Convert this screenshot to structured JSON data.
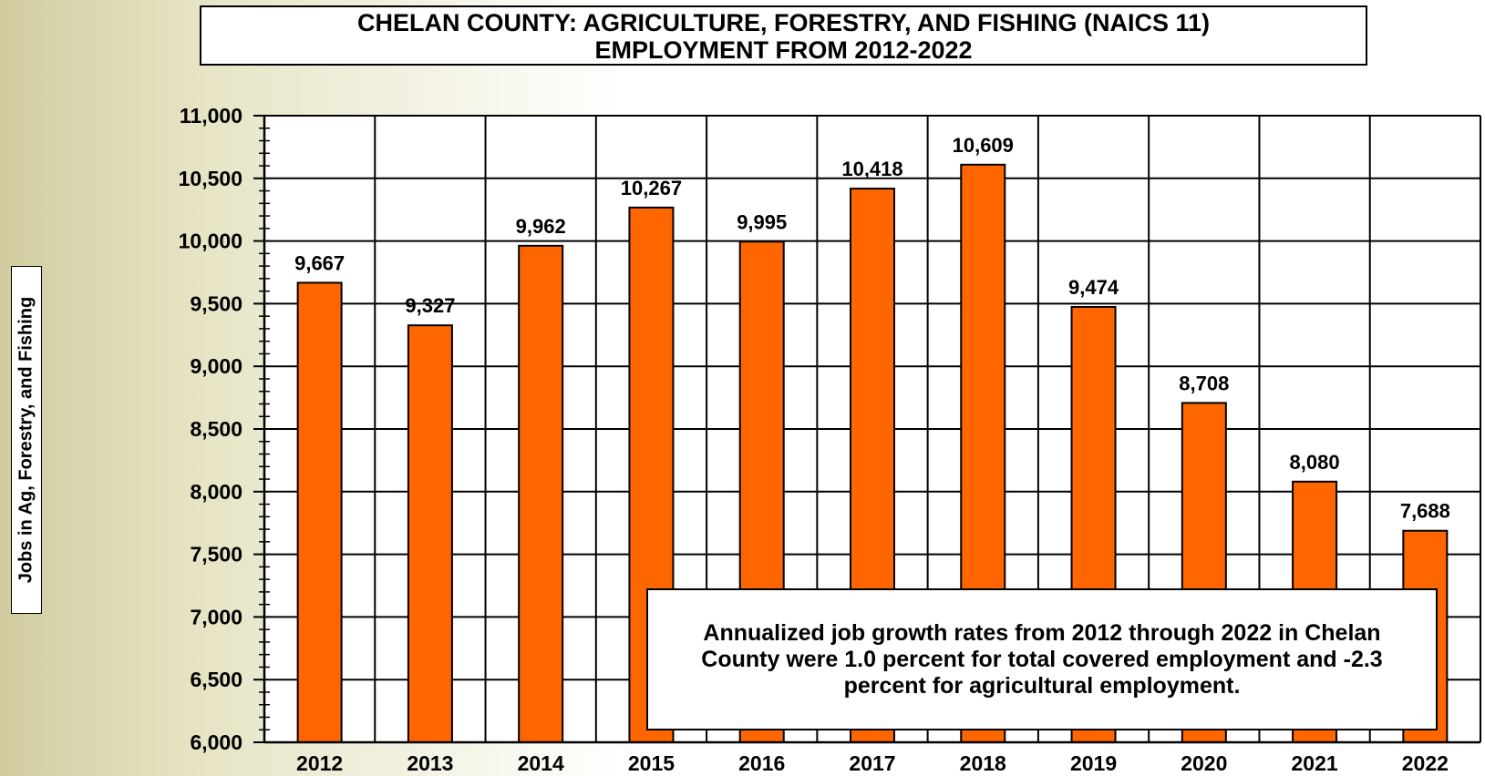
{
  "chart_data": {
    "type": "bar",
    "title": "CHELAN COUNTY: AGRICULTURE, FORESTRY, AND FISHING (NAICS 11)",
    "subtitle": "EMPLOYMENT FROM 2012-2022",
    "ylabel": "Jobs in Ag, Forestry, and Fishing",
    "xlabel": "",
    "categories": [
      "2012",
      "2013",
      "2014",
      "2015",
      "2016",
      "2017",
      "2018",
      "2019",
      "2020",
      "2021",
      "2022"
    ],
    "values": [
      9667,
      9327,
      9962,
      10267,
      9995,
      10418,
      10609,
      9474,
      8708,
      8080,
      7688
    ],
    "data_labels": [
      "9,667",
      "9,327",
      "9,962",
      "10,267",
      "9,995",
      "10,418",
      "10,609",
      "9,474",
      "8,708",
      "8,080",
      "7,688"
    ],
    "ylim": [
      6000,
      11000
    ],
    "yticks": [
      6000,
      6500,
      7000,
      7500,
      8000,
      8500,
      9000,
      9500,
      10000,
      10500,
      11000
    ],
    "ytick_labels": [
      "6,000",
      "6,500",
      "7,000",
      "7,500",
      "8,000",
      "8,500",
      "9,000",
      "9,500",
      "10,000",
      "10,500",
      "11,000"
    ],
    "grid": true,
    "bar_color": "#ff6600",
    "annotation": "Annualized job growth rates from 2012 through 2022 in Chelan County were 1.0 percent for total covered employment and -2.3 percent for agricultural employment."
  }
}
